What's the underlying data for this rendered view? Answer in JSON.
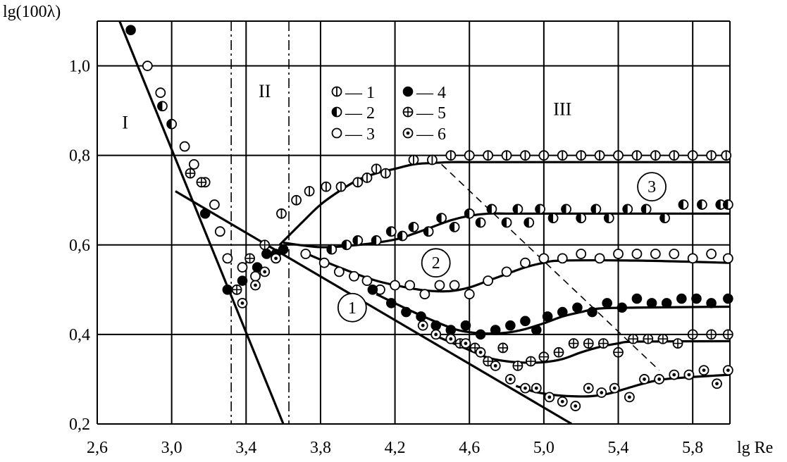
{
  "chart_data": {
    "type": "scatter",
    "xlabel": "lg Re",
    "ylabel": "lg(100λ)",
    "xlim": [
      2.6,
      6.0
    ],
    "ylim": [
      0.2,
      1.1
    ],
    "xticks": [
      2.6,
      3.0,
      3.4,
      3.8,
      4.2,
      4.6,
      5.0,
      5.4,
      5.8
    ],
    "xtick_labels": [
      "2,6",
      "3,0",
      "3,4",
      "3,8",
      "4,2",
      "4,6",
      "5,0",
      "5,4",
      "5,8"
    ],
    "yticks": [
      0.2,
      0.4,
      0.6,
      0.8,
      1.0
    ],
    "ytick_labels": [
      "0,2",
      "0,4",
      "0,6",
      "0,8",
      "1,0"
    ],
    "grid": true,
    "regions": [
      {
        "label": "I",
        "x": 2.75,
        "y": 0.86
      },
      {
        "label": "II",
        "x": 3.5,
        "y": 0.93
      },
      {
        "label": "III",
        "x": 5.1,
        "y": 0.89
      }
    ],
    "regime_boundaries": [
      3.32,
      3.63
    ],
    "legend": {
      "placement": "top-center",
      "entries": [
        {
          "marker": "vbar",
          "label": "— 1"
        },
        {
          "marker": "half",
          "label": "— 2"
        },
        {
          "marker": "open",
          "label": "— 3"
        },
        {
          "marker": "filled",
          "label": "— 4"
        },
        {
          "marker": "plus",
          "label": "— 5"
        },
        {
          "marker": "dot",
          "label": "— 6"
        }
      ]
    },
    "curve_labels": [
      {
        "text": "1",
        "x": 3.97,
        "y": 0.46
      },
      {
        "text": "2",
        "x": 4.42,
        "y": 0.56
      },
      {
        "text": "3",
        "x": 5.58,
        "y": 0.73
      }
    ],
    "lines": [
      {
        "name": "laminar",
        "style": "solid",
        "x": [
          2.72,
          3.6
        ],
        "y": [
          1.1,
          0.2
        ]
      },
      {
        "name": "smooth",
        "style": "solid",
        "x": [
          3.02,
          5.15
        ],
        "y": [
          0.72,
          0.2
        ]
      },
      {
        "name": "boundary",
        "style": "dashed",
        "x": [
          4.45,
          5.62
        ],
        "y": [
          0.78,
          0.32
        ]
      },
      {
        "name": "c1",
        "style": "solid",
        "x": [
          3.58,
          3.7,
          3.8,
          3.9,
          4.0,
          4.1,
          4.2,
          4.3,
          4.4,
          4.5,
          4.6,
          4.8,
          5.0,
          5.5,
          6.0
        ],
        "y": [
          0.6,
          0.65,
          0.69,
          0.72,
          0.745,
          0.76,
          0.77,
          0.78,
          0.783,
          0.785,
          0.785,
          0.785,
          0.785,
          0.785,
          0.785
        ]
      },
      {
        "name": "c2",
        "style": "solid",
        "x": [
          3.6,
          3.8,
          4.0,
          4.2,
          4.3,
          4.4,
          4.5,
          4.6,
          4.7,
          4.8,
          5.0,
          5.5,
          6.0
        ],
        "y": [
          0.605,
          0.595,
          0.6,
          0.612,
          0.625,
          0.64,
          0.655,
          0.665,
          0.67,
          0.67,
          0.67,
          0.67,
          0.67
        ]
      },
      {
        "name": "c3",
        "style": "solid",
        "x": [
          3.7,
          3.9,
          4.1,
          4.3,
          4.4,
          4.5,
          4.6,
          4.7,
          4.8,
          4.9,
          5.0,
          5.1,
          5.5,
          6.0
        ],
        "y": [
          0.585,
          0.55,
          0.52,
          0.502,
          0.497,
          0.497,
          0.505,
          0.52,
          0.535,
          0.55,
          0.56,
          0.565,
          0.565,
          0.56
        ]
      },
      {
        "name": "c4",
        "style": "solid",
        "x": [
          4.1,
          4.3,
          4.5,
          4.6,
          4.7,
          4.8,
          4.9,
          5.0,
          5.1,
          5.2,
          5.3,
          5.5,
          6.0
        ],
        "y": [
          0.49,
          0.45,
          0.415,
          0.405,
          0.402,
          0.404,
          0.412,
          0.425,
          0.44,
          0.45,
          0.458,
          0.46,
          0.462
        ]
      },
      {
        "name": "c5",
        "style": "solid",
        "x": [
          4.4,
          4.6,
          4.7,
          4.8,
          4.9,
          5.0,
          5.1,
          5.2,
          5.3,
          5.4,
          5.5,
          6.0
        ],
        "y": [
          0.4,
          0.365,
          0.348,
          0.34,
          0.337,
          0.338,
          0.345,
          0.36,
          0.372,
          0.38,
          0.384,
          0.385
        ]
      },
      {
        "name": "c6",
        "style": "solid",
        "x": [
          4.85,
          4.95,
          5.05,
          5.15,
          5.25,
          5.35,
          5.45,
          5.55,
          5.65,
          5.8,
          6.0
        ],
        "y": [
          0.285,
          0.272,
          0.265,
          0.262,
          0.262,
          0.268,
          0.28,
          0.292,
          0.3,
          0.305,
          0.31
        ]
      }
    ],
    "series": [
      {
        "marker": "vbar",
        "x": [
          3.59,
          3.67,
          3.74,
          3.83,
          3.91,
          4.0,
          4.05,
          4.1,
          4.15,
          4.3,
          4.4,
          4.5,
          4.6,
          4.7,
          4.8,
          4.9,
          5.0,
          5.1,
          5.2,
          5.3,
          5.4,
          5.5,
          5.6,
          5.7,
          5.8,
          5.9,
          5.98
        ],
        "y": [
          0.67,
          0.7,
          0.72,
          0.73,
          0.73,
          0.74,
          0.75,
          0.77,
          0.76,
          0.79,
          0.79,
          0.8,
          0.8,
          0.8,
          0.8,
          0.8,
          0.8,
          0.8,
          0.8,
          0.8,
          0.8,
          0.8,
          0.8,
          0.8,
          0.8,
          0.8,
          0.8
        ]
      },
      {
        "marker": "half",
        "x": [
          2.95,
          3.0,
          3.86,
          3.94,
          4.0,
          4.1,
          4.18,
          4.24,
          4.3,
          4.38,
          4.45,
          4.52,
          4.6,
          4.66,
          4.72,
          4.8,
          4.86,
          4.92,
          4.98,
          5.05,
          5.12,
          5.2,
          5.28,
          5.35,
          5.45,
          5.55,
          5.65,
          5.75,
          5.85,
          5.95,
          5.99
        ],
        "y": [
          0.91,
          0.87,
          0.59,
          0.6,
          0.61,
          0.61,
          0.63,
          0.62,
          0.64,
          0.63,
          0.66,
          0.64,
          0.67,
          0.65,
          0.68,
          0.65,
          0.68,
          0.65,
          0.68,
          0.66,
          0.68,
          0.66,
          0.68,
          0.66,
          0.68,
          0.68,
          0.66,
          0.69,
          0.69,
          0.69,
          0.69
        ]
      },
      {
        "marker": "open",
        "x": [
          2.87,
          2.94,
          3.07,
          3.12,
          3.18,
          3.23,
          3.26,
          3.3,
          3.38,
          3.45,
          3.72,
          3.82,
          3.9,
          3.98,
          4.05,
          4.12,
          4.2,
          4.28,
          4.36,
          4.44,
          4.52,
          4.6,
          4.7,
          4.8,
          4.9,
          5.0,
          5.1,
          5.2,
          5.3,
          5.4,
          5.5,
          5.6,
          5.7,
          5.8,
          5.9,
          5.99
        ],
        "y": [
          1.0,
          0.94,
          0.82,
          0.78,
          0.74,
          0.69,
          0.63,
          0.57,
          0.55,
          0.53,
          0.58,
          0.56,
          0.54,
          0.53,
          0.52,
          0.5,
          0.51,
          0.51,
          0.49,
          0.51,
          0.51,
          0.49,
          0.52,
          0.54,
          0.56,
          0.57,
          0.57,
          0.58,
          0.57,
          0.58,
          0.58,
          0.58,
          0.58,
          0.57,
          0.58,
          0.57
        ]
      },
      {
        "marker": "filled",
        "x": [
          2.78,
          3.18,
          3.3,
          3.38,
          3.46,
          3.51,
          3.56,
          3.6,
          4.08,
          4.18,
          4.26,
          4.34,
          4.42,
          4.5,
          4.58,
          4.66,
          4.74,
          4.82,
          4.9,
          4.96,
          5.02,
          5.1,
          5.18,
          5.26,
          5.34,
          5.42,
          5.5,
          5.58,
          5.66,
          5.74,
          5.82,
          5.9,
          5.99
        ],
        "y": [
          1.08,
          0.67,
          0.5,
          0.52,
          0.55,
          0.58,
          0.58,
          0.59,
          0.5,
          0.47,
          0.45,
          0.44,
          0.42,
          0.41,
          0.42,
          0.4,
          0.41,
          0.42,
          0.43,
          0.41,
          0.44,
          0.45,
          0.46,
          0.45,
          0.47,
          0.46,
          0.48,
          0.47,
          0.47,
          0.48,
          0.48,
          0.47,
          0.48
        ]
      },
      {
        "marker": "plus",
        "x": [
          3.1,
          3.16,
          3.35,
          3.42,
          3.5,
          4.55,
          4.63,
          4.7,
          4.78,
          4.86,
          4.93,
          5.0,
          5.08,
          5.16,
          5.24,
          5.32,
          5.4,
          5.48,
          5.56,
          5.64,
          5.72,
          5.8,
          5.9,
          5.99
        ],
        "y": [
          0.76,
          0.74,
          0.5,
          0.57,
          0.6,
          0.38,
          0.37,
          0.34,
          0.37,
          0.33,
          0.34,
          0.35,
          0.36,
          0.38,
          0.38,
          0.38,
          0.36,
          0.39,
          0.39,
          0.39,
          0.38,
          0.4,
          0.4,
          0.4
        ]
      },
      {
        "marker": "dot",
        "x": [
          3.38,
          3.45,
          3.5,
          3.56,
          4.35,
          4.42,
          4.5,
          4.58,
          4.66,
          4.74,
          4.82,
          4.9,
          4.96,
          5.03,
          5.1,
          5.17,
          5.24,
          5.31,
          5.38,
          5.46,
          5.54,
          5.62,
          5.7,
          5.78,
          5.86,
          5.93,
          5.99
        ],
        "y": [
          0.47,
          0.51,
          0.54,
          0.57,
          0.42,
          0.4,
          0.39,
          0.38,
          0.36,
          0.33,
          0.3,
          0.28,
          0.28,
          0.26,
          0.25,
          0.24,
          0.28,
          0.27,
          0.28,
          0.26,
          0.3,
          0.3,
          0.31,
          0.31,
          0.32,
          0.29,
          0.32
        ]
      }
    ]
  }
}
